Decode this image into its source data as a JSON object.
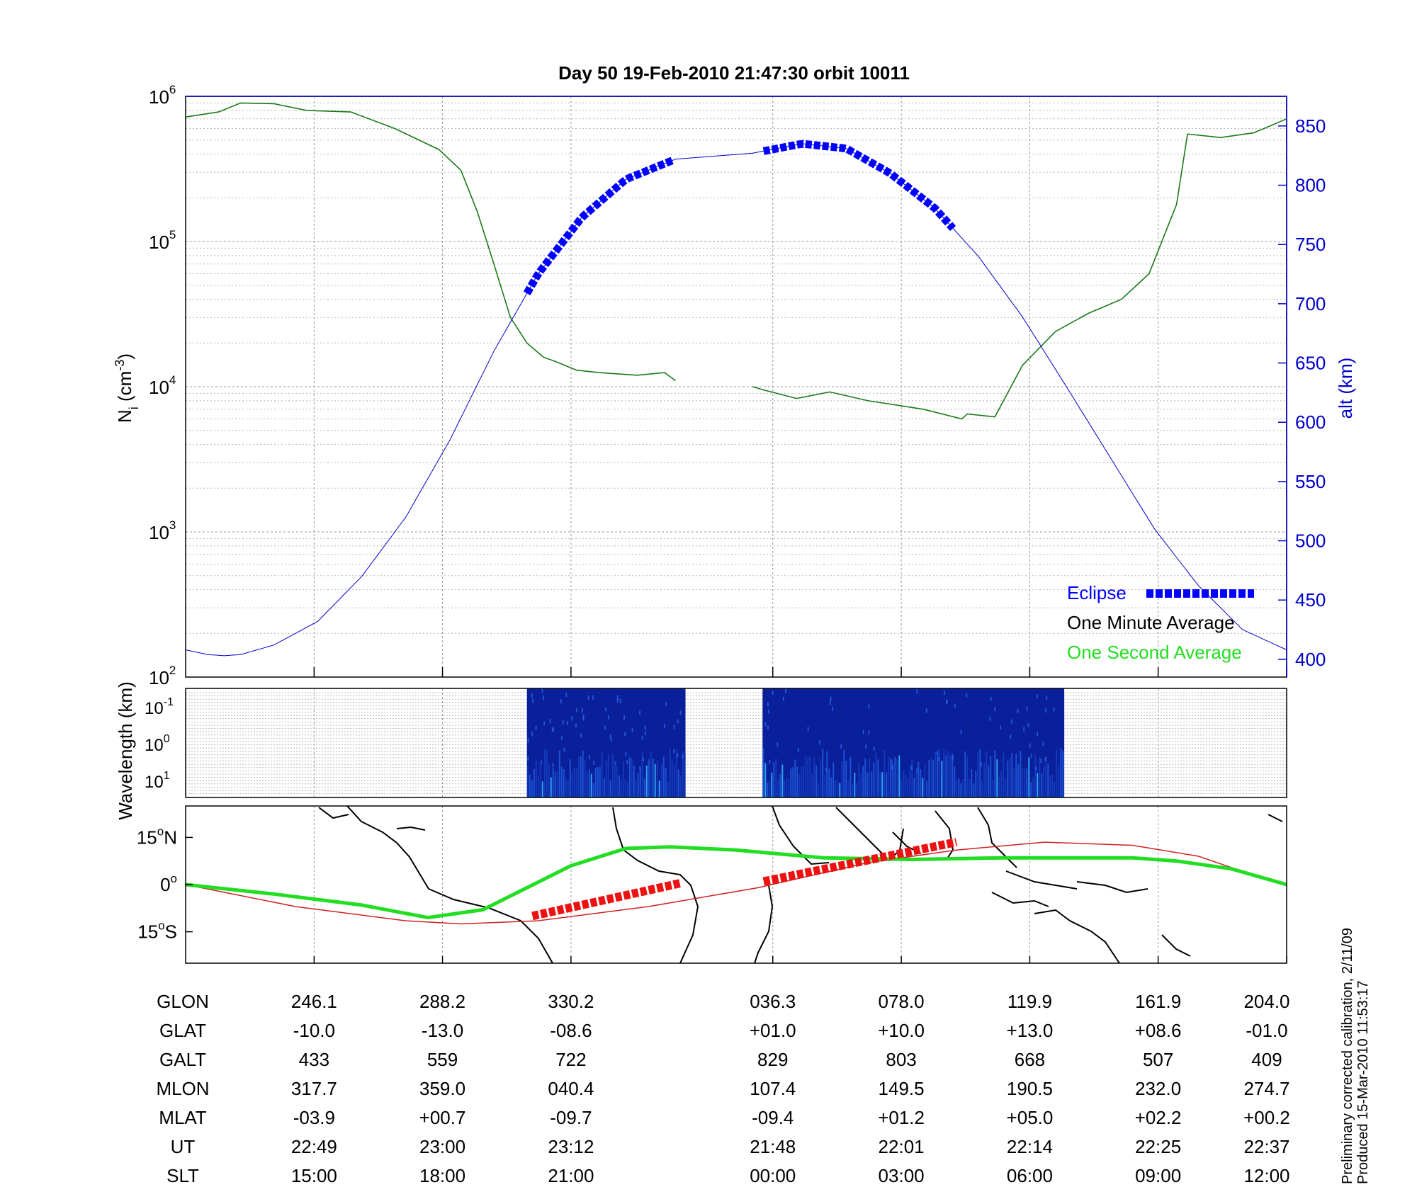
{
  "title": "Day 50  19-Feb-2010 21:47:30   orbit 10011",
  "chart_data": [
    {
      "type": "line",
      "panel": "ion-density",
      "yscale": "log",
      "ylim": [
        100,
        1000000
      ],
      "ylabel": "N",
      "ylabel_sub": "i",
      "ylabel_unit": "(cm",
      "ylabel_unit_sup": "-3",
      "ylabel_unit_end": ")",
      "y_ticks": [
        {
          "base": "10",
          "exp": "2",
          "value": 100
        },
        {
          "base": "10",
          "exp": "3",
          "value": 1000
        },
        {
          "base": "10",
          "exp": "4",
          "value": 10000
        },
        {
          "base": "10",
          "exp": "5",
          "value": 100000
        },
        {
          "base": "10",
          "exp": "6",
          "value": 1000000
        }
      ],
      "y2label": "alt (km)",
      "y2lim": [
        385,
        875
      ],
      "y2_ticks": [
        "400",
        "450",
        "500",
        "550",
        "600",
        "650",
        "700",
        "750",
        "800",
        "850"
      ],
      "x_ticks_ut": [
        "22:49",
        "23:00",
        "23:12",
        "21:48",
        "22:01",
        "22:14",
        "22:25",
        "22:37"
      ],
      "grid": true,
      "legend_position": "bottom-right",
      "legend": [
        {
          "label": "Eclipse",
          "color": "#0000ff",
          "style": "dashed-thick"
        },
        {
          "label": "One Minute Average",
          "color": "#000000"
        },
        {
          "label": "One Second Average",
          "color": "#22dd22"
        }
      ],
      "series": [
        {
          "name": "",
          "color": "#1a7a1a",
          "role": "Ni one minute average",
          "segments": [
            {
              "x": [
                0,
                0.03,
                0.05,
                0.08,
                0.11,
                0.15,
                0.19,
                0.23,
                0.25,
                0.265,
                0.28,
                0.295,
                0.31,
                0.325,
                0.335,
                0.355,
                0.375,
                0.41,
                0.435,
                0.445
              ],
              "y": [
                720000,
                780000,
                900000,
                890000,
                800000,
                780000,
                600000,
                430000,
                310000,
                160000,
                70000,
                30000,
                20000,
                16000,
                15000,
                13000,
                12500,
                12000,
                12500,
                11000
              ]
            },
            {
              "x": [
                0.515,
                0.525,
                0.555,
                0.585,
                0.62,
                0.67,
                0.705,
                0.71,
                0.735,
                0.76,
                0.79,
                0.82,
                0.85,
                0.875,
                0.9,
                0.91,
                0.94,
                0.97,
                1.0
              ],
              "y": [
                10000,
                9500,
                8300,
                9200,
                8000,
                7000,
                6000,
                6500,
                6200,
                14000,
                24000,
                32000,
                40000,
                60000,
                180000,
                550000,
                520000,
                560000,
                700000
              ]
            }
          ]
        },
        {
          "name": "",
          "color": "#0000cc",
          "role": "altitude (right axis, km)",
          "axis": "right",
          "x": [
            0,
            0.02,
            0.035,
            0.05,
            0.08,
            0.12,
            0.16,
            0.2,
            0.24,
            0.28,
            0.32,
            0.36,
            0.4,
            0.445,
            0.515,
            0.56,
            0.6,
            0.64,
            0.68,
            0.72,
            0.76,
            0.8,
            0.84,
            0.88,
            0.92,
            0.96,
            1.0
          ],
          "y": [
            408,
            404,
            403,
            404,
            412,
            432,
            470,
            520,
            585,
            660,
            725,
            773,
            805,
            822,
            827,
            835,
            831,
            810,
            781,
            740,
            689,
            630,
            570,
            510,
            462,
            425,
            408
          ]
        },
        {
          "name": "",
          "color": "#0000ff",
          "role": "eclipse",
          "axis": "right",
          "x_range_1": [
            0.31,
            0.445
          ],
          "x_range_2": [
            0.525,
            0.7
          ]
        }
      ]
    },
    {
      "type": "heatmap",
      "panel": "wavelength-spectrogram",
      "ylabel": "Wavelength (km)",
      "yscale": "log",
      "y_ticks": [
        {
          "base": "10",
          "exp": "-1"
        },
        {
          "base": "10",
          "exp": "0"
        },
        {
          "base": "10",
          "exp": "1"
        }
      ],
      "data_x_ranges": [
        [
          0.31,
          0.454
        ],
        [
          0.524,
          0.798
        ]
      ]
    },
    {
      "type": "line",
      "panel": "ground-track-map",
      "y_ticks": [
        {
          "value": "15",
          "deg": "o",
          "hemi": "N"
        },
        {
          "value": "0",
          "deg": "o",
          "hemi": ""
        },
        {
          "value": "15",
          "deg": "o",
          "hemi": "S"
        }
      ],
      "ylim": [
        -25,
        25
      ],
      "series": [
        {
          "name": "",
          "color": "#22dd22",
          "role": "ground track",
          "x": [
            0,
            0.08,
            0.16,
            0.22,
            0.27,
            0.35,
            0.4,
            0.44,
            0.5,
            0.58,
            0.66,
            0.74,
            0.8,
            0.86,
            0.9,
            0.95,
            1.0
          ],
          "y": [
            0,
            -3,
            -6.5,
            -10.5,
            -8,
            6,
            11.5,
            12,
            11,
            8.5,
            8,
            8.5,
            8.5,
            8.5,
            7.5,
            5,
            0
          ]
        },
        {
          "name": "",
          "color": "#cc2222",
          "role": "magnetic equator",
          "x": [
            0,
            0.1,
            0.2,
            0.25,
            0.32,
            0.42,
            0.52,
            0.62,
            0.7,
            0.78,
            0.86,
            0.92,
            0.97,
            1.0
          ],
          "y": [
            0,
            -7,
            -11.5,
            -12.5,
            -11.5,
            -7,
            -1,
            7,
            11,
            13.5,
            12.5,
            9,
            3,
            0
          ]
        },
        {
          "name": "",
          "color": "#ee1111",
          "role": "eclipse track",
          "x_range_1": [
            0.315,
            0.45
          ],
          "y_range_1": [
            -10,
            0.5
          ],
          "x_range_2": [
            0.525,
            0.7
          ],
          "y_range_2": [
            1,
            13.5
          ]
        }
      ]
    }
  ],
  "info_table": {
    "rows": [
      {
        "label": "GLON",
        "values": [
          "246.1",
          "288.2",
          "330.2",
          "036.3",
          "078.0",
          "119.9",
          "161.9",
          "204.0"
        ]
      },
      {
        "label": "GLAT",
        "values": [
          "-10.0",
          "-13.0",
          "-08.6",
          "+01.0",
          "+10.0",
          "+13.0",
          "+08.6",
          "-01.0"
        ]
      },
      {
        "label": "GALT",
        "values": [
          "433",
          "559",
          "722",
          "829",
          "803",
          "668",
          "507",
          "409"
        ]
      },
      {
        "label": "MLON",
        "values": [
          "317.7",
          "359.0",
          "040.4",
          "107.4",
          "149.5",
          "190.5",
          "232.0",
          "274.7"
        ]
      },
      {
        "label": "MLAT",
        "values": [
          "-03.9",
          "+00.7",
          "-09.7",
          "-09.4",
          "+01.2",
          "+05.0",
          "+02.2",
          "+00.2"
        ]
      },
      {
        "label": "UT",
        "values": [
          "22:49",
          "23:00",
          "23:12",
          "21:48",
          "22:01",
          "22:14",
          "22:25",
          "22:37"
        ]
      },
      {
        "label": "SLT",
        "values": [
          "15:00",
          "18:00",
          "21:00",
          "00:00",
          "03:00",
          "06:00",
          "09:00",
          "12:00"
        ]
      }
    ]
  },
  "footnote": {
    "line1": "Preliminary corrected calibration, 2/11/09",
    "line2": "Produced 15-Mar-2010 11:53:17"
  },
  "colors": {
    "eclipse": "#0000ff",
    "minute_avg": "#000000",
    "second_avg": "#22dd22",
    "altitude": "#0000cc",
    "track": "#22dd22",
    "mag_equator": "#cc2222",
    "eclipse_track": "#ee1111"
  }
}
